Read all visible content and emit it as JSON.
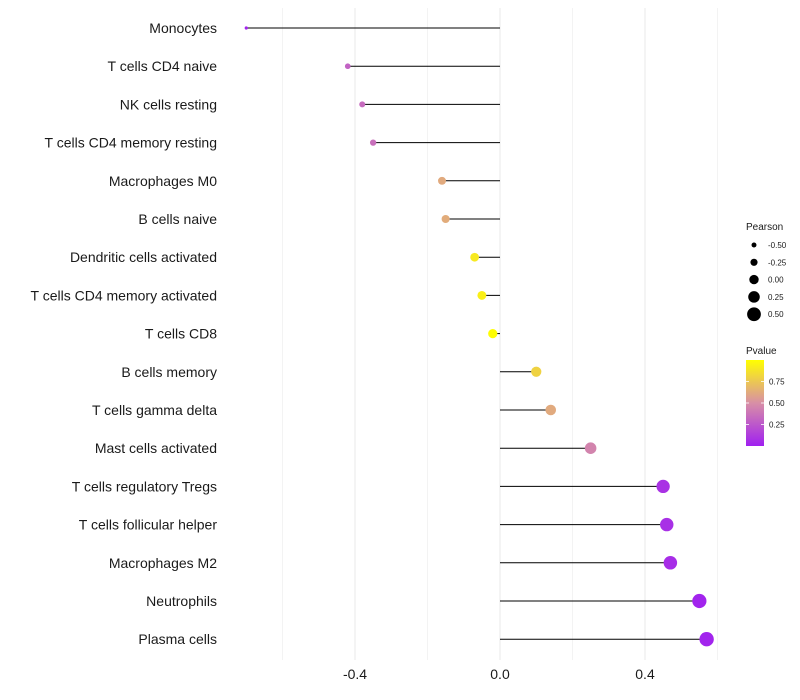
{
  "chart_data": {
    "type": "lollipop",
    "title": "",
    "xlabel": "",
    "ylabel": "",
    "xlim": [
      -0.78,
      0.62
    ],
    "x_ticks": [
      -0.4,
      0.0,
      0.4
    ],
    "x_tick_labels": [
      "-0.4",
      "0.0",
      "0.4"
    ],
    "minor_gridlines": [
      -0.6,
      -0.2,
      0.2,
      0.6
    ],
    "grid": true,
    "categories": [
      "Monocytes",
      "T cells CD4 naive",
      "NK cells resting",
      "T cells CD4 memory resting",
      "Macrophages M0",
      "B cells naive",
      "Dendritic cells activated",
      "T cells CD4 memory activated",
      "T cells CD8",
      "B cells memory",
      "T cells gamma delta",
      "Mast cells activated",
      "T cells regulatory  Tregs ",
      "T cells follicular helper",
      "Macrophages M2",
      "Neutrophils",
      "Plasma cells"
    ],
    "pearson": [
      -0.7,
      -0.42,
      -0.38,
      -0.35,
      -0.16,
      -0.15,
      -0.07,
      -0.05,
      -0.02,
      0.1,
      0.14,
      0.25,
      0.45,
      0.46,
      0.47,
      0.55,
      0.57
    ],
    "pvalue": [
      0.02,
      0.3,
      0.34,
      0.36,
      0.62,
      0.63,
      0.9,
      0.93,
      0.99,
      0.8,
      0.62,
      0.45,
      0.08,
      0.07,
      0.06,
      0.02,
      0.02
    ],
    "legend": {
      "position": "right",
      "size_title": "Pearson",
      "size_values": [
        -0.5,
        -0.25,
        0.0,
        0.25,
        0.5
      ],
      "size_labels": [
        "-0.50",
        "-0.25",
        "0.00",
        "0.25",
        "0.50"
      ],
      "color_title": "Pvalue",
      "color_ticks": [
        0.25,
        0.5,
        0.75
      ],
      "color_labels": [
        "0.25",
        "0.50",
        "0.75"
      ],
      "color_range": [
        0.0,
        1.0
      ],
      "color_low": "#a020f0",
      "color_mid": "#d88fa6",
      "color_high": "#ffff00"
    },
    "stem_color": "#000000",
    "grid_color": "#ebebeb"
  }
}
